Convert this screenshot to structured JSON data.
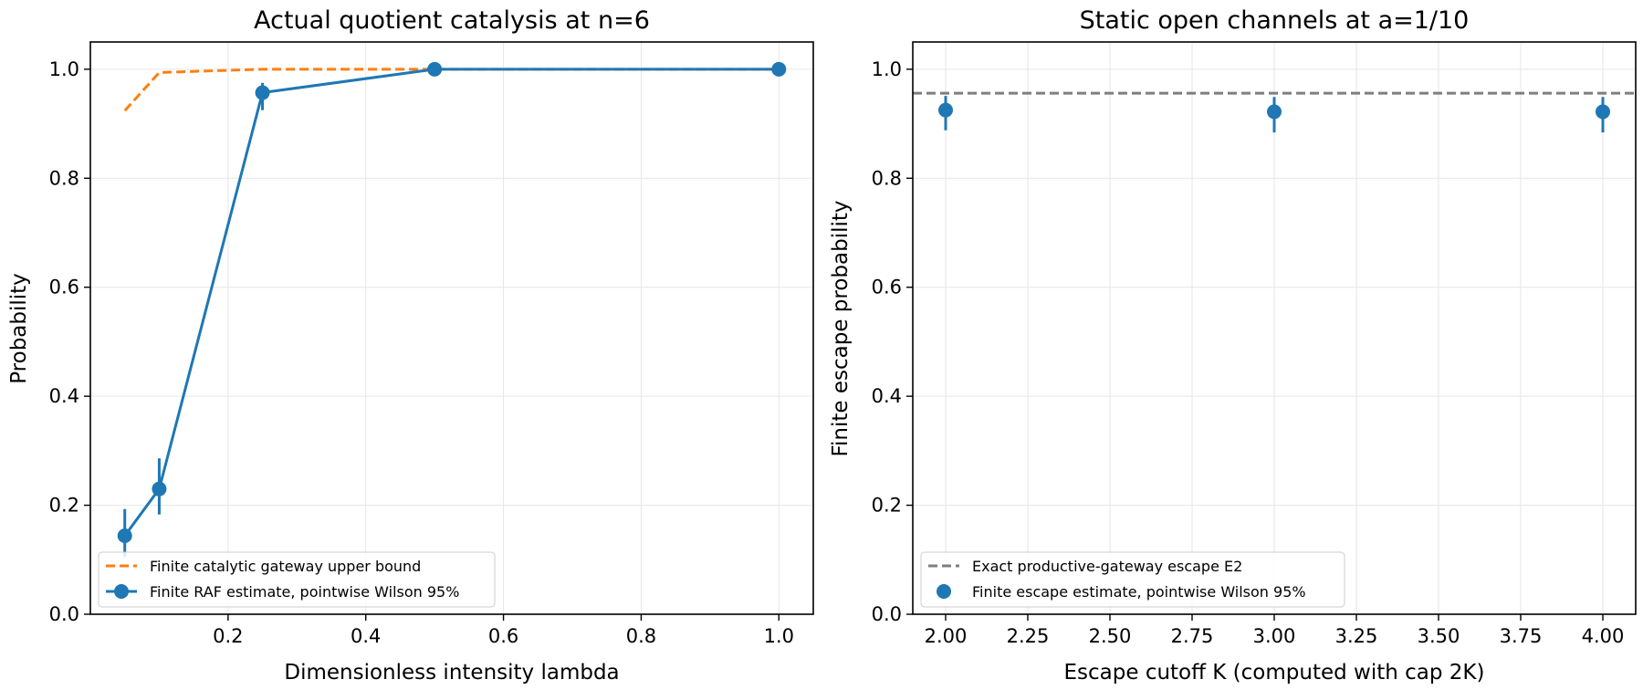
{
  "colors": {
    "blue": "#1f77b4",
    "orange": "#ff7f0e",
    "gray": "#7f7f7f"
  },
  "chart_data": [
    {
      "type": "line",
      "title": "Actual quotient catalysis at n=6",
      "xlabel": "Dimensionless intensity lambda",
      "ylabel": "Probability",
      "xlim": [
        0.0,
        1.05
      ],
      "ylim": [
        0.0,
        1.05
      ],
      "xticks": [
        0.2,
        0.4,
        0.6,
        0.8,
        1.0
      ],
      "xtick_labels": [
        "0.2",
        "0.4",
        "0.6",
        "0.8",
        "1.0"
      ],
      "yticks": [
        0.0,
        0.2,
        0.4,
        0.6,
        0.8,
        1.0
      ],
      "ytick_labels": [
        "0.0",
        "0.2",
        "0.4",
        "0.6",
        "0.8",
        "1.0"
      ],
      "grid": true,
      "legend_position": "lower-left",
      "series": [
        {
          "name": "Finite catalytic gateway upper bound",
          "style": "dashed",
          "color": "#ff7f0e",
          "x": [
            0.05,
            0.1,
            0.25,
            0.5,
            1.0
          ],
          "y": [
            0.924,
            0.994,
            1.0,
            1.0,
            1.0
          ]
        },
        {
          "name": "Finite RAF estimate, pointwise Wilson 95%",
          "style": "line-marker-errorbar",
          "color": "#1f77b4",
          "x": [
            0.05,
            0.1,
            0.25,
            0.5,
            1.0
          ],
          "y": [
            0.144,
            0.23,
            0.957,
            1.0,
            1.0
          ],
          "y_low": [
            0.105,
            0.183,
            0.925,
            0.993,
            0.993
          ],
          "y_high": [
            0.193,
            0.286,
            0.975,
            1.0,
            1.0
          ]
        }
      ]
    },
    {
      "type": "scatter",
      "title": "Static open channels at a=1/10",
      "xlabel": "Escape cutoff K (computed with cap 2K)",
      "ylabel": "Finite escape probability",
      "xlim": [
        1.9,
        4.1
      ],
      "ylim": [
        0.0,
        1.05
      ],
      "xticks": [
        2.0,
        2.25,
        2.5,
        2.75,
        3.0,
        3.25,
        3.5,
        3.75,
        4.0
      ],
      "xtick_labels": [
        "2.00",
        "2.25",
        "2.50",
        "2.75",
        "3.00",
        "3.25",
        "3.50",
        "3.75",
        "4.00"
      ],
      "yticks": [
        0.0,
        0.2,
        0.4,
        0.6,
        0.8,
        1.0
      ],
      "ytick_labels": [
        "0.0",
        "0.2",
        "0.4",
        "0.6",
        "0.8",
        "1.0"
      ],
      "grid": true,
      "legend_position": "lower-left",
      "series": [
        {
          "name": "Exact productive-gateway escape E2",
          "style": "hline-dashed",
          "color": "#7f7f7f",
          "y": 0.956
        },
        {
          "name": "Finite escape estimate, pointwise Wilson 95%",
          "style": "marker-errorbar",
          "color": "#1f77b4",
          "x": [
            2.0,
            3.0,
            4.0
          ],
          "y": [
            0.925,
            0.922,
            0.922
          ],
          "y_low": [
            0.888,
            0.884,
            0.884
          ],
          "y_high": [
            0.951,
            0.949,
            0.949
          ]
        }
      ]
    }
  ]
}
